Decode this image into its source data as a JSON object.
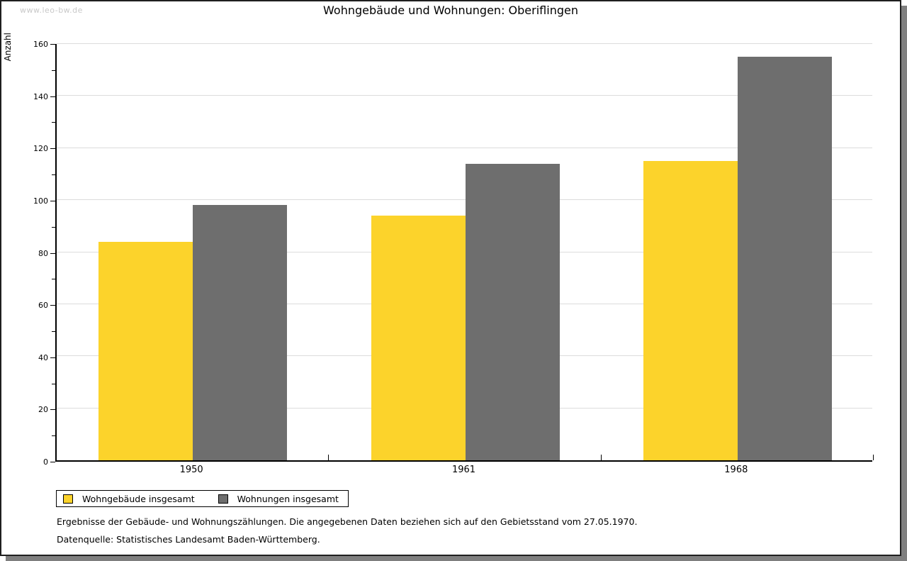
{
  "watermark": "www.leo-bw.de",
  "page": {
    "background": "#ffffff",
    "border_color": "#1f1f1f",
    "shadow_color": "#7f7f7f"
  },
  "chart_data": {
    "type": "bar",
    "title": "Wohngebäude und Wohnungen: Oberiflingen",
    "ylabel": "Anzahl",
    "xlabel": "",
    "categories": [
      "1950",
      "1961",
      "1968"
    ],
    "series": [
      {
        "name": "Wohngebäude insgesamt",
        "color": "#fcd32b",
        "values": [
          84,
          94,
          115
        ]
      },
      {
        "name": "Wohnungen insgesamt",
        "color": "#6e6e6e",
        "values": [
          98,
          114,
          155
        ]
      }
    ],
    "ylim": [
      0,
      160
    ],
    "y_major_step": 20,
    "y_minor_step": 10,
    "grid": "horizontal-major-only",
    "gridline_color": "#dcdcdc",
    "legend_position": "bottom-left"
  },
  "footer": {
    "line1": "Ergebnisse der Gebäude- und Wohnungszählungen. Die angegebenen Daten beziehen sich auf den Gebietsstand vom 27.05.1970.",
    "line2": "Datenquelle: Statistisches Landesamt Baden-Württemberg."
  }
}
